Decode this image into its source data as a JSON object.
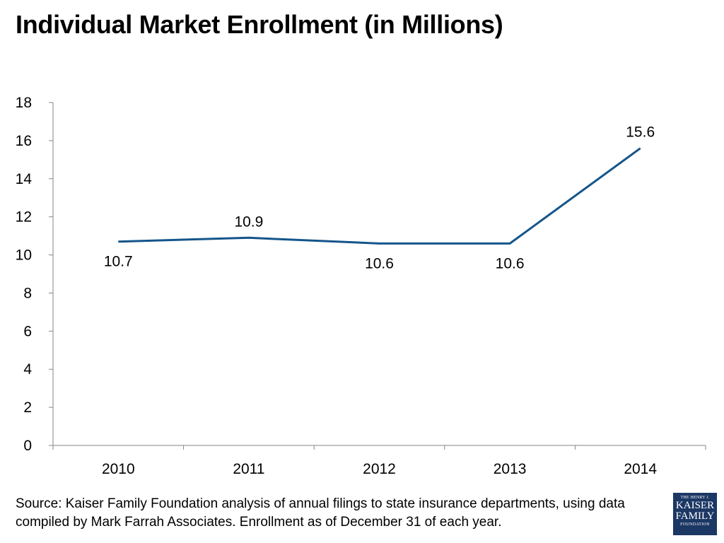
{
  "title": "Individual Market Enrollment (in Millions)",
  "source": "Source: Kaiser Family Foundation analysis of annual filings to state insurance departments, using data compiled by Mark Farrah Associates. Enrollment as of December 31 of each year.",
  "logo": {
    "line1": "THE HENRY J.",
    "line2": "KAISER",
    "line3": "FAMILY",
    "line4": "FOUNDATION"
  },
  "colors": {
    "line": "#14558a",
    "axis": "#868686",
    "logo_bg": "#1b3764"
  },
  "chart_data": {
    "type": "line",
    "title": "Individual Market Enrollment (in Millions)",
    "categories": [
      "2010",
      "2011",
      "2012",
      "2013",
      "2014"
    ],
    "series": [
      {
        "values": [
          10.7,
          10.9,
          10.6,
          10.6,
          15.6
        ]
      }
    ],
    "data_labels": [
      "10.7",
      "10.9",
      "10.6",
      "10.6",
      "15.6"
    ],
    "ylim": [
      0,
      18
    ],
    "yticks": [
      0,
      2,
      4,
      6,
      8,
      10,
      12,
      14,
      16,
      18
    ],
    "grid": false,
    "legend": "none"
  }
}
